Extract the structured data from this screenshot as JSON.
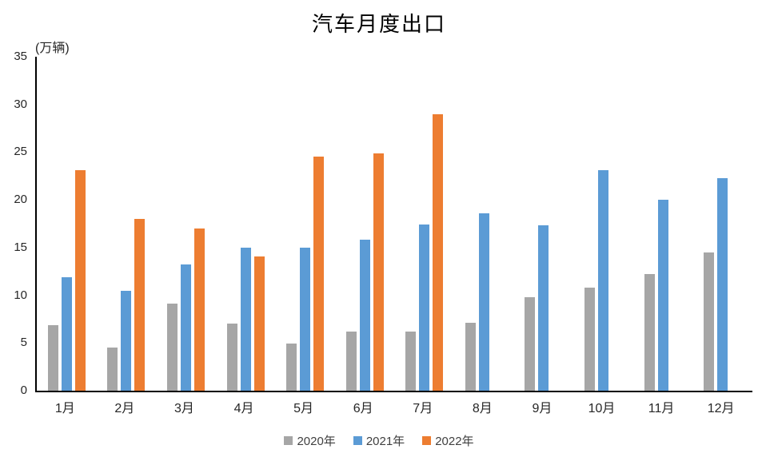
{
  "page": {
    "background_color": "#ffffff",
    "axis_color": "#000000",
    "tick_text_color": "#262626",
    "legend_text_color": "#404040"
  },
  "chart_data": {
    "type": "bar",
    "title": "汽车月度出口",
    "unit_label": "(万辆)",
    "xlabel": "",
    "ylabel": "万辆",
    "categories": [
      "1月",
      "2月",
      "3月",
      "4月",
      "5月",
      "6月",
      "7月",
      "8月",
      "9月",
      "10月",
      "11月",
      "12月"
    ],
    "series": [
      {
        "name": "2020年",
        "color": "#a6a6a6",
        "values": [
          6.9,
          4.5,
          9.1,
          7.0,
          4.9,
          6.2,
          6.2,
          7.1,
          9.8,
          10.8,
          12.2,
          14.5
        ]
      },
      {
        "name": "2021年",
        "color": "#5b9bd5",
        "values": [
          11.9,
          10.5,
          13.2,
          15.0,
          15.0,
          15.8,
          17.4,
          18.6,
          17.3,
          23.1,
          20.0,
          22.3
        ]
      },
      {
        "name": "2022年",
        "color": "#ed7d31",
        "values": [
          23.1,
          18.0,
          17.0,
          14.1,
          24.5,
          24.9,
          29.0,
          null,
          null,
          null,
          null,
          null
        ]
      }
    ],
    "ylim": [
      0,
      35
    ],
    "yticks": [
      0,
      5,
      10,
      15,
      20,
      25,
      30,
      35
    ],
    "grid": false,
    "legend_position": "bottom"
  }
}
